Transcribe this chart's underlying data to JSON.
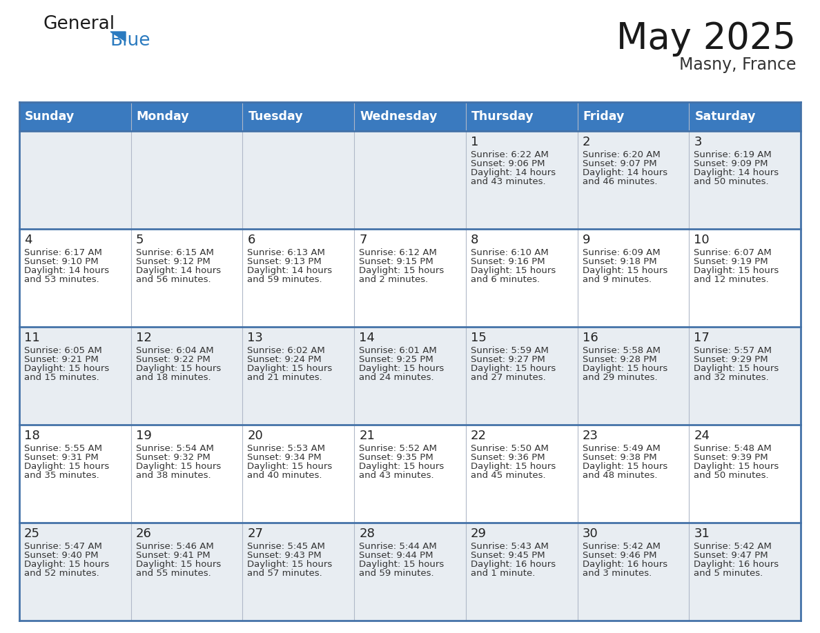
{
  "title": "May 2025",
  "subtitle": "Masny, France",
  "days_of_week": [
    "Sunday",
    "Monday",
    "Tuesday",
    "Wednesday",
    "Thursday",
    "Friday",
    "Saturday"
  ],
  "header_bg": "#3a7abf",
  "header_text": "#ffffff",
  "cell_text_color": "#333333",
  "border_color": "#4472a8",
  "calendar": [
    [
      {
        "day": null,
        "sunrise": null,
        "sunset": null,
        "daylight": null
      },
      {
        "day": null,
        "sunrise": null,
        "sunset": null,
        "daylight": null
      },
      {
        "day": null,
        "sunrise": null,
        "sunset": null,
        "daylight": null
      },
      {
        "day": null,
        "sunrise": null,
        "sunset": null,
        "daylight": null
      },
      {
        "day": 1,
        "sunrise": "6:22 AM",
        "sunset": "9:06 PM",
        "daylight": "14 hours",
        "daylight2": "and 43 minutes."
      },
      {
        "day": 2,
        "sunrise": "6:20 AM",
        "sunset": "9:07 PM",
        "daylight": "14 hours",
        "daylight2": "and 46 minutes."
      },
      {
        "day": 3,
        "sunrise": "6:19 AM",
        "sunset": "9:09 PM",
        "daylight": "14 hours",
        "daylight2": "and 50 minutes."
      }
    ],
    [
      {
        "day": 4,
        "sunrise": "6:17 AM",
        "sunset": "9:10 PM",
        "daylight": "14 hours",
        "daylight2": "and 53 minutes."
      },
      {
        "day": 5,
        "sunrise": "6:15 AM",
        "sunset": "9:12 PM",
        "daylight": "14 hours",
        "daylight2": "and 56 minutes."
      },
      {
        "day": 6,
        "sunrise": "6:13 AM",
        "sunset": "9:13 PM",
        "daylight": "14 hours",
        "daylight2": "and 59 minutes."
      },
      {
        "day": 7,
        "sunrise": "6:12 AM",
        "sunset": "9:15 PM",
        "daylight": "15 hours",
        "daylight2": "and 2 minutes."
      },
      {
        "day": 8,
        "sunrise": "6:10 AM",
        "sunset": "9:16 PM",
        "daylight": "15 hours",
        "daylight2": "and 6 minutes."
      },
      {
        "day": 9,
        "sunrise": "6:09 AM",
        "sunset": "9:18 PM",
        "daylight": "15 hours",
        "daylight2": "and 9 minutes."
      },
      {
        "day": 10,
        "sunrise": "6:07 AM",
        "sunset": "9:19 PM",
        "daylight": "15 hours",
        "daylight2": "and 12 minutes."
      }
    ],
    [
      {
        "day": 11,
        "sunrise": "6:05 AM",
        "sunset": "9:21 PM",
        "daylight": "15 hours",
        "daylight2": "and 15 minutes."
      },
      {
        "day": 12,
        "sunrise": "6:04 AM",
        "sunset": "9:22 PM",
        "daylight": "15 hours",
        "daylight2": "and 18 minutes."
      },
      {
        "day": 13,
        "sunrise": "6:02 AM",
        "sunset": "9:24 PM",
        "daylight": "15 hours",
        "daylight2": "and 21 minutes."
      },
      {
        "day": 14,
        "sunrise": "6:01 AM",
        "sunset": "9:25 PM",
        "daylight": "15 hours",
        "daylight2": "and 24 minutes."
      },
      {
        "day": 15,
        "sunrise": "5:59 AM",
        "sunset": "9:27 PM",
        "daylight": "15 hours",
        "daylight2": "and 27 minutes."
      },
      {
        "day": 16,
        "sunrise": "5:58 AM",
        "sunset": "9:28 PM",
        "daylight": "15 hours",
        "daylight2": "and 29 minutes."
      },
      {
        "day": 17,
        "sunrise": "5:57 AM",
        "sunset": "9:29 PM",
        "daylight": "15 hours",
        "daylight2": "and 32 minutes."
      }
    ],
    [
      {
        "day": 18,
        "sunrise": "5:55 AM",
        "sunset": "9:31 PM",
        "daylight": "15 hours",
        "daylight2": "and 35 minutes."
      },
      {
        "day": 19,
        "sunrise": "5:54 AM",
        "sunset": "9:32 PM",
        "daylight": "15 hours",
        "daylight2": "and 38 minutes."
      },
      {
        "day": 20,
        "sunrise": "5:53 AM",
        "sunset": "9:34 PM",
        "daylight": "15 hours",
        "daylight2": "and 40 minutes."
      },
      {
        "day": 21,
        "sunrise": "5:52 AM",
        "sunset": "9:35 PM",
        "daylight": "15 hours",
        "daylight2": "and 43 minutes."
      },
      {
        "day": 22,
        "sunrise": "5:50 AM",
        "sunset": "9:36 PM",
        "daylight": "15 hours",
        "daylight2": "and 45 minutes."
      },
      {
        "day": 23,
        "sunrise": "5:49 AM",
        "sunset": "9:38 PM",
        "daylight": "15 hours",
        "daylight2": "and 48 minutes."
      },
      {
        "day": 24,
        "sunrise": "5:48 AM",
        "sunset": "9:39 PM",
        "daylight": "15 hours",
        "daylight2": "and 50 minutes."
      }
    ],
    [
      {
        "day": 25,
        "sunrise": "5:47 AM",
        "sunset": "9:40 PM",
        "daylight": "15 hours",
        "daylight2": "and 52 minutes."
      },
      {
        "day": 26,
        "sunrise": "5:46 AM",
        "sunset": "9:41 PM",
        "daylight": "15 hours",
        "daylight2": "and 55 minutes."
      },
      {
        "day": 27,
        "sunrise": "5:45 AM",
        "sunset": "9:43 PM",
        "daylight": "15 hours",
        "daylight2": "and 57 minutes."
      },
      {
        "day": 28,
        "sunrise": "5:44 AM",
        "sunset": "9:44 PM",
        "daylight": "15 hours",
        "daylight2": "and 59 minutes."
      },
      {
        "day": 29,
        "sunrise": "5:43 AM",
        "sunset": "9:45 PM",
        "daylight": "16 hours",
        "daylight2": "and 1 minute."
      },
      {
        "day": 30,
        "sunrise": "5:42 AM",
        "sunset": "9:46 PM",
        "daylight": "16 hours",
        "daylight2": "and 3 minutes."
      },
      {
        "day": 31,
        "sunrise": "5:42 AM",
        "sunset": "9:47 PM",
        "daylight": "16 hours",
        "daylight2": "and 5 minutes."
      }
    ]
  ]
}
